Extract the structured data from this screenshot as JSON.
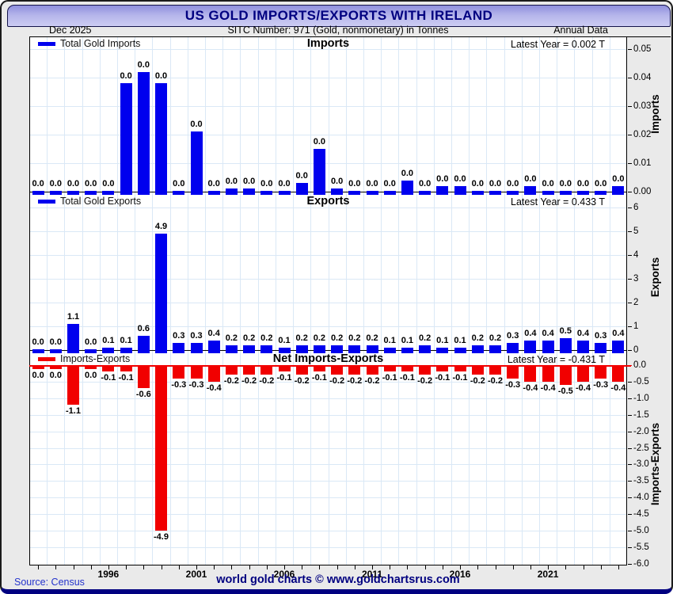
{
  "title": "US GOLD IMPORTS/EXPORTS WITH IRELAND",
  "header": {
    "date": "Dec 2025",
    "subtitle": "SITC Number: 971 (Gold, nonmonetary) in Tonnes",
    "right": "Annual Data"
  },
  "footer": {
    "source": "Source: Census",
    "credit": "world gold charts © www.goldchartsrus.com"
  },
  "colors": {
    "import_bar": "#0000ee",
    "export_bar": "#0000ee",
    "net_bar": "#f10000",
    "net_zero_line": "#f10000",
    "title_text": "#000080",
    "grid": "#dae8f6",
    "titlebar_top": "#8f8fdd",
    "titlebar_bottom": "#cdcdf3"
  },
  "x_axis": {
    "tick_labels": [
      "1996",
      "2001",
      "2006",
      "2011",
      "2016",
      "2021"
    ]
  },
  "panels": [
    {
      "id": "imports",
      "legend": "Total Gold Imports",
      "title": "Imports",
      "latest": "Latest Year = 0.002 T",
      "axis_label": "Imports",
      "ytick_labels": [
        "0.05",
        "0.04",
        "0.03",
        "0.02",
        "0.01",
        "0.00"
      ]
    },
    {
      "id": "exports",
      "legend": "Total Gold Exports",
      "title": "Exports",
      "latest": "Latest Year = 0.433 T",
      "axis_label": "Exports",
      "ytick_labels": [
        "6",
        "5",
        "4",
        "3",
        "2",
        "1",
        "0"
      ]
    },
    {
      "id": "net",
      "legend": "Imports-Exports",
      "title": "Net Imports-Exports",
      "latest": "Latest Year = -0.431 T",
      "axis_label": "Imports-Exports",
      "ytick_labels": [
        "0.0",
        "-0.5",
        "-1.0",
        "-1.5",
        "-2.0",
        "-2.5",
        "-3.0",
        "-3.5",
        "-4.0",
        "-4.5",
        "-5.0",
        "-5.5",
        "-6.0"
      ]
    }
  ],
  "chart_data": [
    {
      "type": "bar",
      "title": "Imports",
      "series_name": "Total Gold Imports",
      "unit": "Tonnes",
      "categories": [
        1992,
        1993,
        1994,
        1995,
        1996,
        1997,
        1998,
        1999,
        2000,
        2001,
        2002,
        2003,
        2004,
        2005,
        2006,
        2007,
        2008,
        2009,
        2010,
        2011,
        2012,
        2013,
        2014,
        2015,
        2016,
        2017,
        2018,
        2019,
        2020,
        2021,
        2022,
        2023,
        2024,
        2025
      ],
      "values": [
        0,
        0,
        0,
        0,
        0,
        0.038,
        0.042,
        0.038,
        0,
        0.021,
        0,
        0.001,
        0.001,
        0,
        0,
        0.003,
        0.015,
        0.001,
        0,
        0,
        0,
        0.004,
        0,
        0.002,
        0.002,
        0,
        0,
        0,
        0.002,
        0,
        0,
        0,
        0,
        0.002
      ],
      "value_labels": [
        "0.0",
        "0.0",
        "0.0",
        "0.0",
        "0.0",
        "0.0",
        "0.0",
        "0.0",
        "0.0",
        "0.0",
        "0.0",
        "0.0",
        "0.0",
        "0.0",
        "0.0",
        "0.0",
        "0.0",
        "0.0",
        "0.0",
        "0.0",
        "0.0",
        "0.0",
        "0.0",
        "0.0",
        "0.0",
        "0.0",
        "0.0",
        "0.0",
        "0.0",
        "0.0",
        "0.0",
        "0.0",
        "0.0",
        "0.0"
      ],
      "ylabel": "Imports",
      "ylim": [
        0,
        0.055
      ],
      "yticks": [
        0,
        0.01,
        0.02,
        0.03,
        0.04,
        0.05
      ],
      "bar_color": "#0000ee",
      "latest_year_text": "Latest Year = 0.002 T",
      "grid": true,
      "legend_position": "top-left"
    },
    {
      "type": "bar",
      "title": "Exports",
      "series_name": "Total Gold Exports",
      "unit": "Tonnes",
      "categories": [
        1992,
        1993,
        1994,
        1995,
        1996,
        1997,
        1998,
        1999,
        2000,
        2001,
        2002,
        2003,
        2004,
        2005,
        2006,
        2007,
        2008,
        2009,
        2010,
        2011,
        2012,
        2013,
        2014,
        2015,
        2016,
        2017,
        2018,
        2019,
        2020,
        2021,
        2022,
        2023,
        2024,
        2025
      ],
      "values": [
        0,
        0,
        1.1,
        0,
        0.1,
        0.1,
        0.6,
        4.9,
        0.3,
        0.3,
        0.4,
        0.2,
        0.2,
        0.2,
        0.1,
        0.2,
        0.2,
        0.2,
        0.2,
        0.2,
        0.1,
        0.1,
        0.2,
        0.1,
        0.1,
        0.2,
        0.2,
        0.3,
        0.4,
        0.4,
        0.5,
        0.4,
        0.3,
        0.4
      ],
      "value_labels": [
        "0.0",
        "0.0",
        "1.1",
        "0.0",
        "0.1",
        "0.1",
        "0.6",
        "4.9",
        "0.3",
        "0.3",
        "0.4",
        "0.2",
        "0.2",
        "0.2",
        "0.1",
        "0.2",
        "0.2",
        "0.2",
        "0.2",
        "0.2",
        "0.1",
        "0.1",
        "0.2",
        "0.1",
        "0.1",
        "0.2",
        "0.2",
        "0.3",
        "0.4",
        "0.4",
        "0.5",
        "0.4",
        "0.3",
        "0.4"
      ],
      "ylabel": "Exports",
      "ylim": [
        0,
        6.5
      ],
      "yticks": [
        0,
        1,
        2,
        3,
        4,
        5,
        6
      ],
      "bar_color": "#0000ee",
      "latest_year_text": "Latest Year = 0.433 T",
      "grid": true,
      "legend_position": "top-left"
    },
    {
      "type": "bar",
      "title": "Net Imports-Exports",
      "series_name": "Imports-Exports",
      "unit": "Tonnes",
      "categories": [
        1992,
        1993,
        1994,
        1995,
        1996,
        1997,
        1998,
        1999,
        2000,
        2001,
        2002,
        2003,
        2004,
        2005,
        2006,
        2007,
        2008,
        2009,
        2010,
        2011,
        2012,
        2013,
        2014,
        2015,
        2016,
        2017,
        2018,
        2019,
        2020,
        2021,
        2022,
        2023,
        2024,
        2025
      ],
      "values": [
        0,
        0,
        -1.1,
        0,
        -0.1,
        -0.1,
        -0.6,
        -4.9,
        -0.3,
        -0.3,
        -0.4,
        -0.2,
        -0.2,
        -0.2,
        -0.1,
        -0.2,
        -0.1,
        -0.2,
        -0.2,
        -0.2,
        -0.1,
        -0.1,
        -0.2,
        -0.1,
        -0.1,
        -0.2,
        -0.2,
        -0.3,
        -0.4,
        -0.4,
        -0.5,
        -0.4,
        -0.3,
        -0.4
      ],
      "value_labels": [
        "0.0",
        "0.0",
        "-1.1",
        "0.0",
        "-0.1",
        "-0.1",
        "-0.6",
        "-4.9",
        "-0.3",
        "-0.3",
        "-0.4",
        "-0.2",
        "-0.2",
        "-0.2",
        "-0.1",
        "-0.2",
        "-0.1",
        "-0.2",
        "-0.2",
        "-0.2",
        "-0.1",
        "-0.1",
        "-0.2",
        "-0.1",
        "-0.1",
        "-0.2",
        "-0.2",
        "-0.3",
        "-0.4",
        "-0.4",
        "-0.5",
        "-0.4",
        "-0.3",
        "-0.4"
      ],
      "ylabel": "Imports-Exports",
      "ylim": [
        -6,
        0.3
      ],
      "yticks": [
        0,
        -0.5,
        -1,
        -1.5,
        -2,
        -2.5,
        -3,
        -3.5,
        -4,
        -4.5,
        -5,
        -5.5,
        -6
      ],
      "bar_color": "#f10000",
      "latest_year_text": "Latest Year = -0.431 T",
      "grid": true,
      "legend_position": "top-left"
    }
  ]
}
